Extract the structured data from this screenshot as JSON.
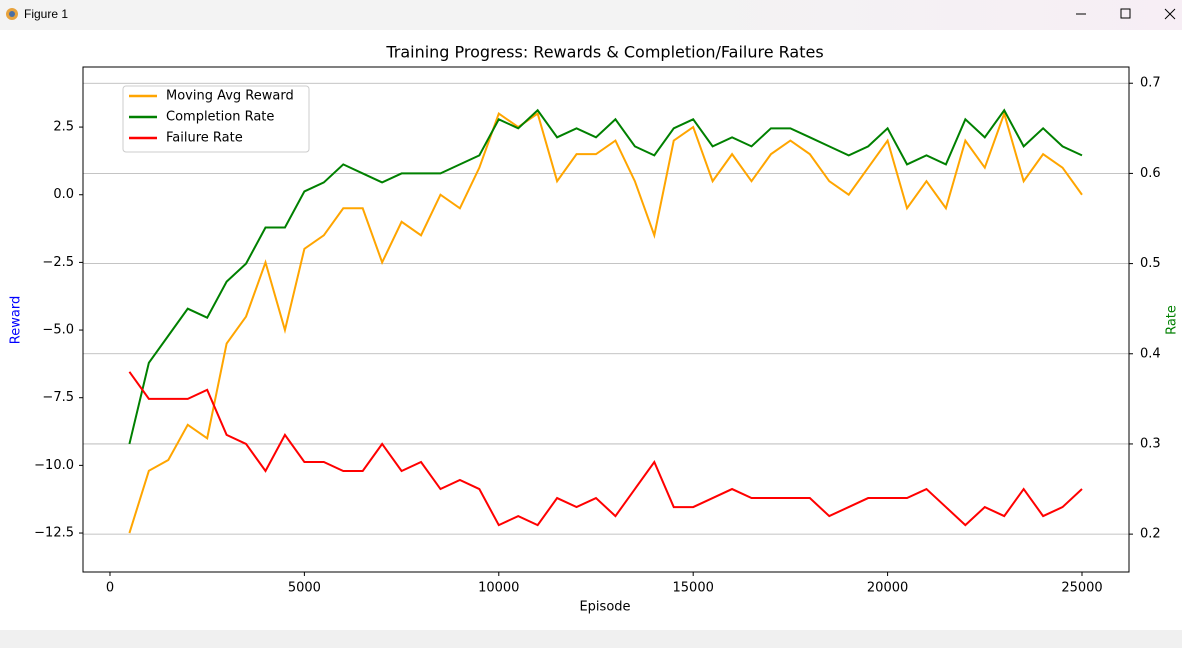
{
  "window": {
    "title": "Figure 1"
  },
  "chart_data": {
    "type": "line",
    "title": "Training Progress: Rewards & Completion/Failure Rates",
    "xlabel": "Episode",
    "ylabel": "Reward",
    "y2label": "Rate",
    "ylabel_color": "#0000ff",
    "y2label_color": "#008000",
    "xlim": [
      -694,
      26209
    ],
    "ylim": [
      -13.94,
      4.72
    ],
    "y2lim": [
      0.158,
      0.718
    ],
    "xticks": [
      0,
      5000,
      10000,
      15000,
      20000,
      25000
    ],
    "yticks": [
      {
        "value": -12.5,
        "label": "−12.5"
      },
      {
        "value": -10,
        "label": "−10.0"
      },
      {
        "value": -7.5,
        "label": "−7.5"
      },
      {
        "value": -5,
        "label": "−5.0"
      },
      {
        "value": -2.5,
        "label": "−2.5"
      },
      {
        "value": 0,
        "label": "0.0"
      },
      2.5
    ],
    "y2ticks": [
      0.2,
      0.3,
      0.4,
      0.5,
      0.6,
      0.7
    ],
    "grid": "y2",
    "legend": "upper left",
    "x": [
      500,
      1000,
      1500,
      2000,
      2500,
      3000,
      3500,
      4000,
      4500,
      5000,
      5500,
      6000,
      6500,
      7000,
      7500,
      8000,
      8500,
      9000,
      9500,
      10000,
      10500,
      11000,
      11500,
      12000,
      12500,
      13000,
      13500,
      14000,
      14500,
      15000,
      15500,
      16000,
      16500,
      17000,
      17500,
      18000,
      18500,
      19000,
      19500,
      20000,
      20500,
      21000,
      21500,
      22000,
      22500,
      23000,
      23500,
      24000,
      24500,
      25000
    ],
    "series": [
      {
        "name": "Moving Avg Reward",
        "color": "#ffa500",
        "values": [
          -12.5,
          -10.2,
          -9.8,
          -8.5,
          -9,
          -5.5,
          -4.5,
          -2.5,
          -5,
          -2,
          -1.5,
          -0.5,
          -0.5,
          -2.5,
          -1,
          -1.5,
          0,
          -0.5,
          1,
          3,
          2.5,
          3,
          0.5,
          1.5,
          1.5,
          2,
          0.5,
          -1.5,
          2,
          2.5,
          0.5,
          1.5,
          0.5,
          1.5,
          2,
          1.5,
          0.5,
          0,
          1,
          2,
          -0.5,
          0.5,
          -0.5,
          2,
          1,
          3,
          0.5,
          1.5,
          1,
          0
        ]
      },
      {
        "name": "Completion Rate",
        "color": "#008000",
        "axis": "y2",
        "values": [
          0.3,
          0.39,
          0.42,
          0.45,
          0.44,
          0.48,
          0.5,
          0.54,
          0.54,
          0.58,
          0.59,
          0.61,
          0.6,
          0.59,
          0.6,
          0.6,
          0.6,
          0.61,
          0.62,
          0.66,
          0.65,
          0.67,
          0.64,
          0.65,
          0.64,
          0.66,
          0.63,
          0.62,
          0.65,
          0.66,
          0.63,
          0.64,
          0.63,
          0.65,
          0.65,
          0.64,
          0.63,
          0.62,
          0.63,
          0.65,
          0.61,
          0.62,
          0.61,
          0.66,
          0.64,
          0.67,
          0.63,
          0.65,
          0.63,
          0.62
        ]
      },
      {
        "name": "Failure Rate",
        "color": "#ff0000",
        "axis": "y2",
        "values": [
          0.38,
          0.35,
          0.35,
          0.35,
          0.36,
          0.31,
          0.3,
          0.27,
          0.31,
          0.28,
          0.28,
          0.27,
          0.27,
          0.3,
          0.27,
          0.28,
          0.25,
          0.26,
          0.25,
          0.21,
          0.22,
          0.21,
          0.24,
          0.23,
          0.24,
          0.22,
          0.25,
          0.28,
          0.23,
          0.23,
          0.24,
          0.25,
          0.24,
          0.24,
          0.24,
          0.24,
          0.22,
          0.23,
          0.24,
          0.24,
          0.24,
          0.25,
          0.23,
          0.21,
          0.23,
          0.22,
          0.25,
          0.22,
          0.23,
          0.25
        ]
      }
    ]
  }
}
